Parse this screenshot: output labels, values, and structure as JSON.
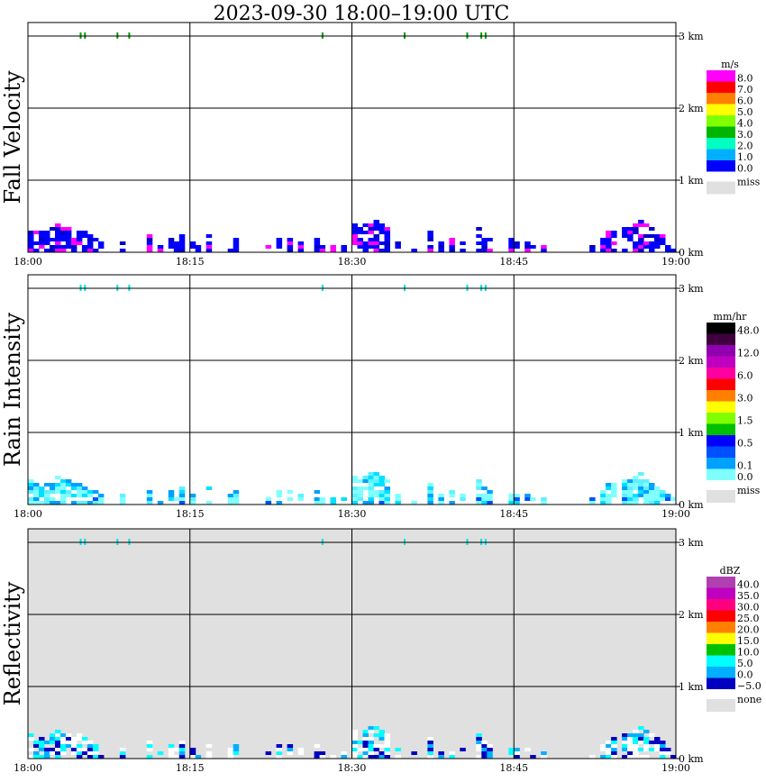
{
  "chart_data": {
    "type": "heatmap",
    "title": "2023-09-30   18:00–19:00 UTC",
    "x_ticks": [
      "18:00",
      "18:15",
      "18:30",
      "18:45",
      "19:00"
    ],
    "y_ticks": [
      "0 km",
      "1 km",
      "2 km",
      "3 km"
    ],
    "xlim_minutes": [
      0,
      60
    ],
    "ylim_km": [
      0,
      3.2
    ],
    "grid": true,
    "panels": [
      {
        "key": "fall",
        "ylabel": "Fall Velocity",
        "unit": "m/s",
        "background": "#ffffff",
        "legend": [
          {
            "label": "8.0",
            "color": "#ff00ff"
          },
          {
            "label": "7.0",
            "color": "#ff0000"
          },
          {
            "label": "6.0",
            "color": "#ff8000"
          },
          {
            "label": "5.0",
            "color": "#ffff00"
          },
          {
            "label": "4.0",
            "color": "#80ff00"
          },
          {
            "label": "3.0",
            "color": "#00b400"
          },
          {
            "label": "2.0",
            "color": "#00ffc0"
          },
          {
            "label": "1.0",
            "color": "#00b0ff"
          },
          {
            "label": "0.0",
            "color": "#0000ff"
          }
        ],
        "miss_label": "miss"
      },
      {
        "key": "rain",
        "ylabel": "Rain Intensity",
        "unit": "mm/hr",
        "background": "#ffffff",
        "legend": [
          {
            "label": "48.0",
            "color": "#000000"
          },
          {
            "label": "",
            "color": "#400040"
          },
          {
            "label": "12.0",
            "color": "#9000b0"
          },
          {
            "label": "",
            "color": "#c000c0"
          },
          {
            "label": "6.0",
            "color": "#ff00a0"
          },
          {
            "label": "",
            "color": "#ff0000"
          },
          {
            "label": "3.0",
            "color": "#ff8000"
          },
          {
            "label": "",
            "color": "#ffff00"
          },
          {
            "label": "1.5",
            "color": "#80ff00"
          },
          {
            "label": "",
            "color": "#00c000"
          },
          {
            "label": "0.5",
            "color": "#0000ff"
          },
          {
            "label": "",
            "color": "#0050ff"
          },
          {
            "label": "0.1",
            "color": "#00a0ff"
          },
          {
            "label": "0.0",
            "color": "#80ffff"
          }
        ],
        "miss_label": "miss"
      },
      {
        "key": "refl",
        "ylabel": "Reflectivity",
        "unit": "dBZ",
        "background": "#e0e0e0",
        "legend": [
          {
            "label": "40.0",
            "color": "#b040b0"
          },
          {
            "label": "35.0",
            "color": "#c000c0"
          },
          {
            "label": "30.0",
            "color": "#ff0080"
          },
          {
            "label": "25.0",
            "color": "#ff0000"
          },
          {
            "label": "20.0",
            "color": "#ff8000"
          },
          {
            "label": "15.0",
            "color": "#ffff00"
          },
          {
            "label": "10.0",
            "color": "#00c000"
          },
          {
            "label": "5.0",
            "color": "#00ffff"
          },
          {
            "label": "0.0",
            "color": "#00b0ff"
          },
          {
            "label": "−5.0",
            "color": "#0000c0"
          }
        ],
        "miss_label": "none"
      }
    ],
    "fall_bars_height_km": [
      [
        0.0,
        0.35
      ],
      [
        0.5,
        0.3
      ],
      [
        1.0,
        0.3
      ],
      [
        1.5,
        0.3
      ],
      [
        2.0,
        0.35
      ],
      [
        2.5,
        0.4
      ],
      [
        3.0,
        0.35
      ],
      [
        3.5,
        0.35
      ],
      [
        4.0,
        0.3
      ],
      [
        4.5,
        0.35
      ],
      [
        5.0,
        0.3
      ],
      [
        5.5,
        0.25
      ],
      [
        6.0,
        0.2
      ],
      [
        6.5,
        0.15
      ],
      [
        8.5,
        0.15
      ],
      [
        11.0,
        0.25
      ],
      [
        12.0,
        0.12
      ],
      [
        13.0,
        0.2
      ],
      [
        13.5,
        0.15
      ],
      [
        14.0,
        0.25
      ],
      [
        15.0,
        0.15
      ],
      [
        15.5,
        0.08
      ],
      [
        16.5,
        0.25
      ],
      [
        18.5,
        0.15
      ],
      [
        19.0,
        0.2
      ],
      [
        22.0,
        0.1
      ],
      [
        23.0,
        0.2
      ],
      [
        24.0,
        0.2
      ],
      [
        25.0,
        0.15
      ],
      [
        26.5,
        0.2
      ],
      [
        27.0,
        0.1
      ],
      [
        28.0,
        0.1
      ],
      [
        29.0,
        0.1
      ],
      [
        30.0,
        0.4
      ],
      [
        30.5,
        0.35
      ],
      [
        31.0,
        0.4
      ],
      [
        31.5,
        0.45
      ],
      [
        32.0,
        0.45
      ],
      [
        32.5,
        0.4
      ],
      [
        33.0,
        0.35
      ],
      [
        34.0,
        0.15
      ],
      [
        35.5,
        0.1
      ],
      [
        37.0,
        0.3
      ],
      [
        38.0,
        0.15
      ],
      [
        39.0,
        0.2
      ],
      [
        40.0,
        0.15
      ],
      [
        41.5,
        0.35
      ],
      [
        42.0,
        0.3
      ],
      [
        42.5,
        0.2
      ],
      [
        44.5,
        0.2
      ],
      [
        45.0,
        0.15
      ],
      [
        46.0,
        0.15
      ],
      [
        46.5,
        0.1
      ],
      [
        47.5,
        0.12
      ],
      [
        52.0,
        0.1
      ],
      [
        53.0,
        0.2
      ],
      [
        53.5,
        0.3
      ],
      [
        54.0,
        0.3
      ],
      [
        55.0,
        0.35
      ],
      [
        55.5,
        0.35
      ],
      [
        56.0,
        0.4
      ],
      [
        56.5,
        0.45
      ],
      [
        57.0,
        0.4
      ],
      [
        57.5,
        0.35
      ],
      [
        58.0,
        0.3
      ],
      [
        58.5,
        0.25
      ],
      [
        59.0,
        0.15
      ],
      [
        59.5,
        0.08
      ]
    ],
    "top_marks_minutes": [
      4.8,
      5.2,
      8.2,
      9.3,
      27.2,
      34.8,
      40.6,
      41.9,
      42.3
    ]
  }
}
